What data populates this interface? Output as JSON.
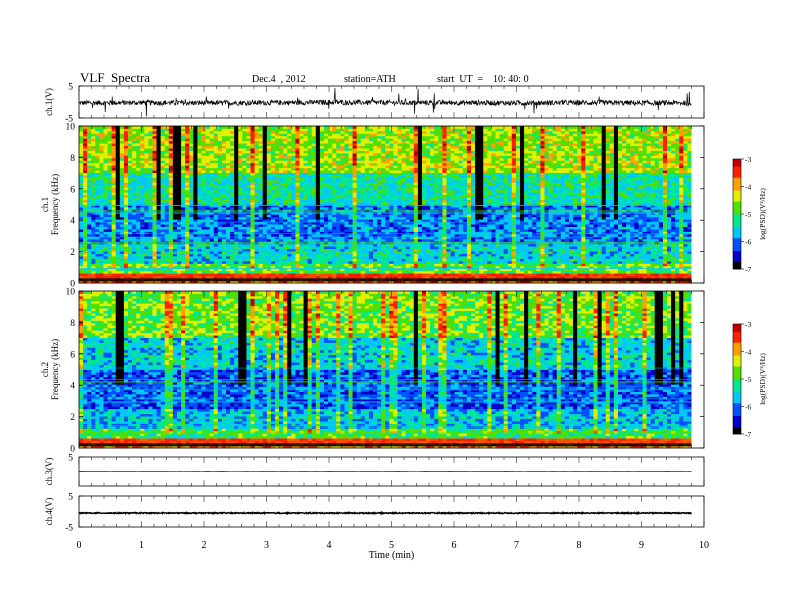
{
  "header": {
    "title": "VLF  Spectra",
    "date": "Dec.4  , 2012",
    "station": "station=ATH",
    "start": "start  UT  =    10: 40: 0"
  },
  "colors": {
    "spectrogram_scale": [
      "#000000",
      "#0000c8",
      "#0050ff",
      "#00c8ff",
      "#00e890",
      "#50e000",
      "#e0f000",
      "#ffa000",
      "#ff2000",
      "#c00000",
      "#ffffff"
    ],
    "trace": "#000000"
  },
  "chart_data": [
    {
      "type": "line",
      "panel": "ch1-waveform",
      "ylabel": "ch.1(V)",
      "ylim": [
        -5,
        5
      ],
      "yticks": [
        "5",
        "-5"
      ],
      "x": [
        0,
        1,
        2,
        3,
        4,
        5,
        6,
        7,
        8,
        9,
        9.8
      ],
      "series": [
        {
          "values": [
            -0.3,
            -0.2,
            -0.3,
            -0.2,
            -0.1,
            -0.2,
            -0.2,
            -0.3,
            -0.2,
            -0.3,
            -0.3
          ]
        }
      ]
    },
    {
      "type": "heatmap",
      "panel": "ch1-spectrogram",
      "ylabel": "ch.1\nFrequency  (kHz)",
      "ylim": [
        0,
        10
      ],
      "yticks": [
        "0",
        "2",
        "4",
        "6",
        "8",
        "10"
      ],
      "colorbar": {
        "label": "log(PSD)(V²/Hz)",
        "range": [
          -7,
          -3
        ],
        "ticks": [
          "-3",
          "-4",
          "-5",
          "-6",
          "-7"
        ]
      }
    },
    {
      "type": "heatmap",
      "panel": "ch2-spectrogram",
      "ylabel": "ch.2\nFrequency  (kHz)",
      "ylim": [
        0,
        10
      ],
      "yticks": [
        "0",
        "2",
        "4",
        "6",
        "8",
        "10"
      ],
      "colorbar": {
        "label": "log(PSD)(V²/Hz)",
        "range": [
          -7,
          -3
        ],
        "ticks": [
          "-3",
          "-4",
          "-5",
          "-6",
          "-7"
        ]
      }
    },
    {
      "type": "line",
      "panel": "ch3-waveform",
      "ylabel": "ch.3(V)",
      "ylim": [
        -5,
        5
      ],
      "yticks": [
        "5"
      ],
      "x": [
        0,
        9.8
      ],
      "series": [
        {
          "values": [
            0,
            0
          ]
        }
      ]
    },
    {
      "type": "line",
      "panel": "ch4-waveform",
      "ylabel": "ch.4(V)",
      "ylim": [
        -5,
        5
      ],
      "yticks": [
        "5",
        "-5"
      ],
      "x": [
        0,
        9.8
      ],
      "series": [
        {
          "values": [
            -0.5,
            -0.5
          ]
        }
      ]
    }
  ],
  "xaxis": {
    "label": "Time  (min)",
    "range": [
      0,
      10
    ],
    "ticks": [
      "0",
      "1",
      "2",
      "3",
      "4",
      "5",
      "6",
      "7",
      "8",
      "9",
      "10"
    ]
  }
}
